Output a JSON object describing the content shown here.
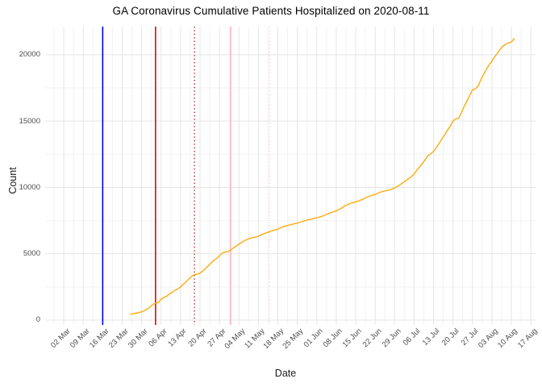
{
  "header": {
    "title": "GA Coronavirus Cumulative Patients Hospitalized on 2020-08-11"
  },
  "chart_data": {
    "type": "line",
    "title": "GA Coronavirus Cumulative Patients Hospitalized on 2020-08-11",
    "xlabel": "Date",
    "ylabel": "Count",
    "grid": {
      "on": true,
      "major_color": "#e5e5e5",
      "minor_color": "#f2f2f2"
    },
    "legend": "none",
    "x_axis_start_date": "2020-03-02",
    "x_tick_labels": [
      "02 Mar",
      "09 Mar",
      "16 Mar",
      "23 Mar",
      "30 Mar",
      "06 Apr",
      "13 Apr",
      "20 Apr",
      "27 Apr",
      "04 May",
      "11 May",
      "18 May",
      "25 May",
      "01 Jun",
      "08 Jun",
      "15 Jun",
      "22 Jun",
      "29 Jun",
      "06 Jul",
      "13 Jul",
      "20 Jul",
      "27 Jul",
      "03 Aug",
      "10 Aug",
      "17 Aug"
    ],
    "x_tick_days": [
      0,
      7,
      14,
      21,
      28,
      35,
      42,
      49,
      56,
      63,
      70,
      77,
      84,
      91,
      98,
      105,
      112,
      119,
      126,
      133,
      140,
      147,
      154,
      161,
      168
    ],
    "x_minor_days": [
      -3.5,
      3.5,
      10.5,
      17.5,
      24.5,
      31.5,
      38.5,
      45.5,
      52.5,
      59.5,
      66.5,
      73.5,
      80.5,
      87.5,
      94.5,
      101.5,
      108.5,
      115.5,
      122.5,
      129.5,
      136.5,
      143.5,
      150.5,
      157.5,
      164.5
    ],
    "x_range_days": [
      -6.7,
      169.7
    ],
    "y_ticks": [
      0,
      5000,
      10000,
      15000,
      20000
    ],
    "y_minor_ticks": [
      2500,
      7500,
      12500,
      17500
    ],
    "y_range": [
      -365,
      22120
    ],
    "line_color": "#ffa500",
    "series": [
      {
        "name": "cumulative-patients-hospitalized",
        "start_date": "2020-03-26",
        "start_day_offset": 24,
        "end_date": "2020-08-11",
        "daily_values": [
          440,
          480,
          530,
          560,
          620,
          710,
          830,
          980,
          1160,
          1280,
          1320,
          1580,
          1700,
          1800,
          1960,
          2100,
          2250,
          2350,
          2500,
          2700,
          2900,
          3100,
          3300,
          3420,
          3460,
          3550,
          3700,
          3900,
          4100,
          4300,
          4500,
          4650,
          4850,
          5050,
          5130,
          5160,
          5270,
          5430,
          5570,
          5720,
          5860,
          5980,
          6080,
          6160,
          6220,
          6260,
          6320,
          6420,
          6520,
          6590,
          6660,
          6740,
          6790,
          6850,
          6950,
          7040,
          7110,
          7160,
          7210,
          7260,
          7310,
          7370,
          7450,
          7510,
          7560,
          7610,
          7660,
          7710,
          7770,
          7830,
          7920,
          8010,
          8090,
          8150,
          8240,
          8340,
          8450,
          8590,
          8700,
          8790,
          8850,
          8910,
          8970,
          9060,
          9160,
          9260,
          9340,
          9400,
          9460,
          9560,
          9650,
          9710,
          9760,
          9810,
          9870,
          9960,
          10070,
          10210,
          10360,
          10510,
          10650,
          10810,
          11010,
          11290,
          11550,
          11810,
          12090,
          12380,
          12540,
          12710,
          13010,
          13320,
          13650,
          13960,
          14310,
          14620,
          15010,
          15160,
          15210,
          15620,
          16100,
          16510,
          16920,
          17350,
          17420,
          17630,
          18110,
          18510,
          18900,
          19240,
          19510,
          19850,
          20120,
          20420,
          20650,
          20800,
          20890,
          20960,
          21220
        ]
      }
    ],
    "vlines": [
      {
        "day_offset": 14,
        "date": "2020-03-16",
        "color": "#0000e8",
        "style": "solid",
        "width": 1.6
      },
      {
        "day_offset": 33,
        "date": "2020-04-04",
        "color": "#ec0000",
        "style": "solid",
        "width": 1.6
      },
      {
        "day_offset": 47,
        "date": "2020-04-18",
        "color": "#b22222",
        "style": "dotted",
        "width": 1.4
      },
      {
        "day_offset": 60,
        "date": "2020-05-01",
        "color": "#ffb6c1",
        "style": "solid",
        "width": 1.6
      },
      {
        "day_offset": 74,
        "date": "2020-05-15",
        "color": "#ffcdd6",
        "style": "dotted",
        "width": 1.4
      }
    ]
  }
}
